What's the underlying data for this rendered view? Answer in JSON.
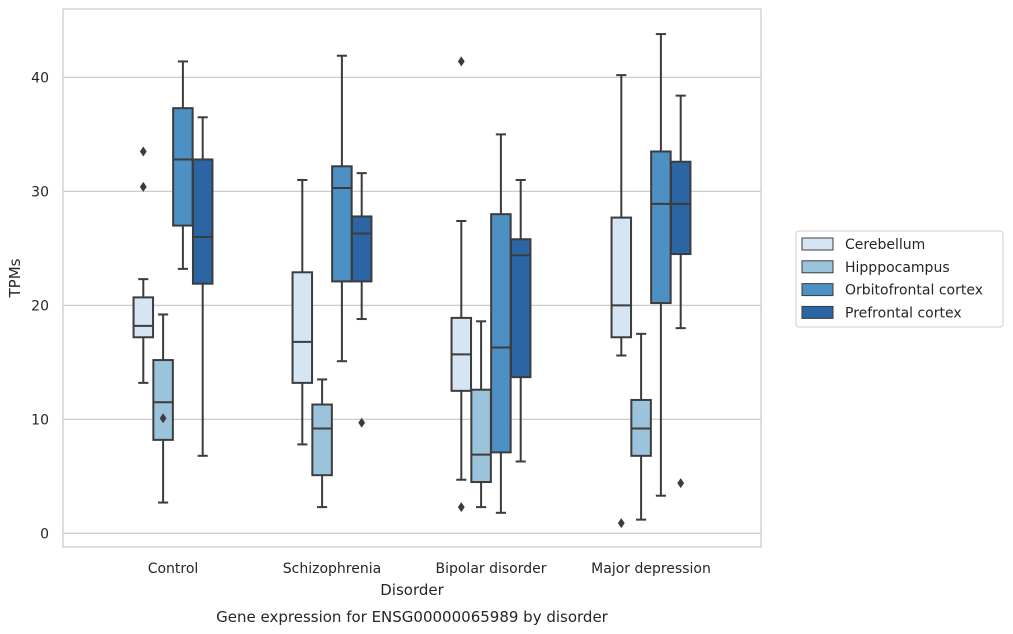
{
  "chart_data": {
    "type": "box",
    "title": "Gene expression for ENSG00000065989 by disorder",
    "xlabel": "Disorder",
    "ylabel": "TPMs",
    "ylim": [
      -1.2,
      46
    ],
    "yticks": [
      0,
      10,
      20,
      30,
      40
    ],
    "grid": "horizontal",
    "legend_position": "right",
    "categories": [
      "Control",
      "Schizophrenia",
      "Bipolar disorder",
      "Major depression"
    ],
    "series": [
      {
        "name": "Cerebellum",
        "color": "#d6e5f4",
        "boxes": [
          {
            "whisker_low": 13.2,
            "q1": 17.2,
            "median": 18.2,
            "q3": 20.7,
            "whisker_high": 22.3,
            "outliers": [
              33.5,
              30.4
            ]
          },
          {
            "whisker_low": 7.8,
            "q1": 13.2,
            "median": 16.8,
            "q3": 22.9,
            "whisker_high": 31.0,
            "outliers": []
          },
          {
            "whisker_low": 4.7,
            "q1": 12.5,
            "median": 15.7,
            "q3": 18.9,
            "whisker_high": 27.4,
            "outliers": [
              2.3,
              41.4
            ]
          },
          {
            "whisker_low": 15.6,
            "q1": 17.2,
            "median": 20.0,
            "q3": 27.7,
            "whisker_high": 40.2,
            "outliers": [
              0.9
            ]
          }
        ]
      },
      {
        "name": "Hipppocampus",
        "color": "#9cc3dc",
        "boxes": [
          {
            "whisker_low": 2.7,
            "q1": 8.2,
            "median": 11.5,
            "q3": 15.2,
            "whisker_high": 19.2,
            "outliers": [
              10.1
            ]
          },
          {
            "whisker_low": 2.3,
            "q1": 5.1,
            "median": 9.2,
            "q3": 11.3,
            "whisker_high": 13.5,
            "outliers": []
          },
          {
            "whisker_low": 2.3,
            "q1": 4.5,
            "median": 6.9,
            "q3": 12.6,
            "whisker_high": 18.6,
            "outliers": []
          },
          {
            "whisker_low": 1.2,
            "q1": 6.8,
            "median": 9.2,
            "q3": 11.7,
            "whisker_high": 17.5,
            "outliers": []
          }
        ]
      },
      {
        "name": "Orbitofrontal cortex",
        "color": "#4d90c3",
        "boxes": [
          {
            "whisker_low": 23.2,
            "q1": 27.0,
            "median": 32.8,
            "q3": 37.3,
            "whisker_high": 41.4,
            "outliers": []
          },
          {
            "whisker_low": 15.1,
            "q1": 22.1,
            "median": 30.3,
            "q3": 32.2,
            "whisker_high": 41.9,
            "outliers": []
          },
          {
            "whisker_low": 1.8,
            "q1": 7.1,
            "median": 16.3,
            "q3": 28.0,
            "whisker_high": 35.0,
            "outliers": []
          },
          {
            "whisker_low": 3.3,
            "q1": 20.2,
            "median": 28.9,
            "q3": 33.5,
            "whisker_high": 43.8,
            "outliers": []
          }
        ]
      },
      {
        "name": "Prefrontal cortex",
        "color": "#2b65a3",
        "boxes": [
          {
            "whisker_low": 6.8,
            "q1": 21.9,
            "median": 26.0,
            "q3": 32.8,
            "whisker_high": 36.5,
            "outliers": []
          },
          {
            "whisker_low": 18.8,
            "q1": 22.1,
            "median": 26.3,
            "q3": 27.8,
            "whisker_high": 31.6,
            "outliers": [
              9.7
            ]
          },
          {
            "whisker_low": 6.3,
            "q1": 13.7,
            "median": 24.4,
            "q3": 25.8,
            "whisker_high": 31.0,
            "outliers": []
          },
          {
            "whisker_low": 18.0,
            "q1": 24.5,
            "median": 28.9,
            "q3": 32.6,
            "whisker_high": 38.4,
            "outliers": [
              4.4
            ]
          }
        ]
      }
    ]
  }
}
